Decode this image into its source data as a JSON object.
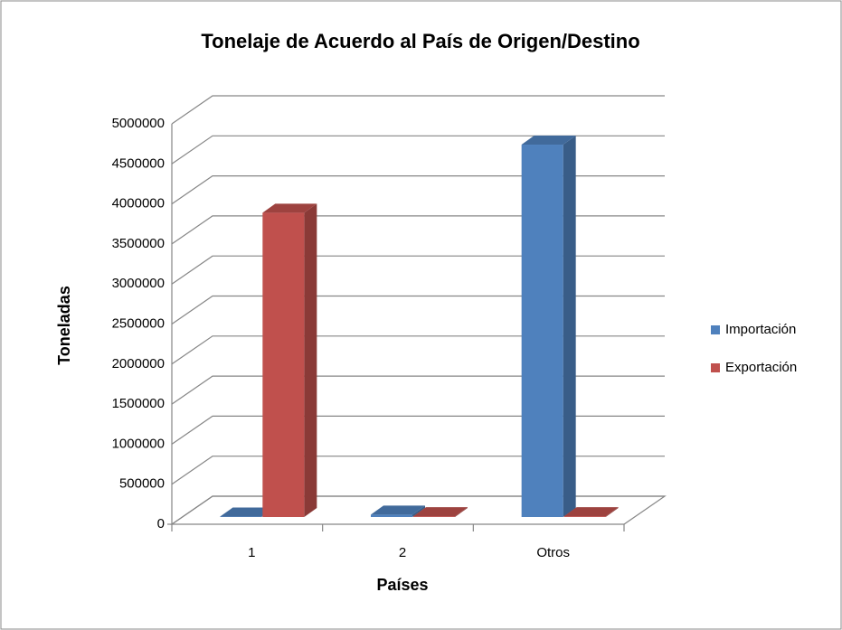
{
  "chart_data": {
    "type": "bar3d",
    "title": "Tonelaje de Acuerdo al País de Origen/Destino",
    "x_label": "Países",
    "y_label": "Toneladas",
    "categories": [
      "1",
      "2",
      "Otros"
    ],
    "series": [
      {
        "name": "Importación",
        "color": "#4f81bd",
        "values": [
          5000,
          30000,
          4650000
        ]
      },
      {
        "name": "Exportación",
        "color": "#c0504d",
        "values": [
          3800000,
          10000,
          10000
        ]
      }
    ],
    "ylim": [
      0,
      5000000
    ],
    "yticks": [
      0,
      500000,
      1000000,
      1500000,
      2000000,
      2500000,
      3000000,
      3500000,
      4000000,
      4500000,
      5000000
    ],
    "grid": true,
    "legend": "right"
  }
}
